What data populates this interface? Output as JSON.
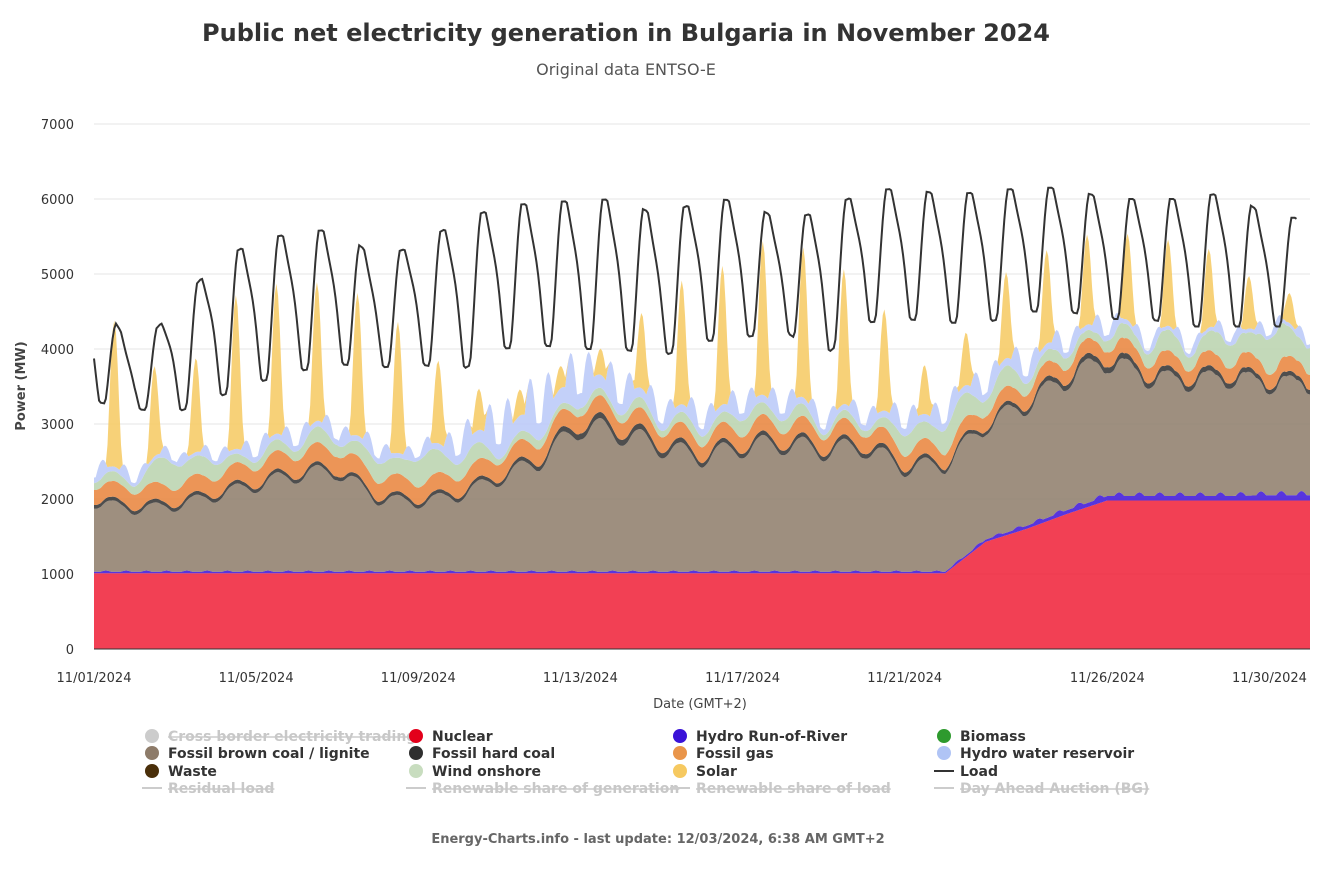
{
  "colors": {
    "nuclear": "#ee0a24",
    "hydro_ror": "#3a12d8",
    "lignite": "#8d7b69",
    "hard_coal": "#2f2f2f",
    "gas": "#e9833a",
    "wind": "#b8d2ad",
    "hydro_res": "#b8c8f8",
    "solar": "#f6c960",
    "load": "#333333",
    "grid": "#e6e6e6"
  },
  "chart_data": {
    "type": "area",
    "title": "Public net electricity generation in Bulgaria in November 2024",
    "subtitle": "Original data ENTSO-E",
    "xlabel": "Date (GMT+2)",
    "ylabel": "Power (MW)",
    "ylim": [
      0,
      7000
    ],
    "y_ticks": [
      "0",
      "1000",
      "2000",
      "3000",
      "4000",
      "5000",
      "6000",
      "7000"
    ],
    "x_ticks": [
      "11/01/2024",
      "11/05/2024",
      "11/09/2024",
      "11/13/2024",
      "11/17/2024",
      "11/21/2024",
      "11/26/2024",
      "11/30/2024"
    ],
    "x_tick_days": [
      1,
      5,
      9,
      13,
      17,
      21,
      26,
      30
    ],
    "grid": true,
    "legend_position": "bottom",
    "days": [
      1,
      2,
      3,
      4,
      5,
      6,
      7,
      8,
      9,
      10,
      11,
      12,
      13,
      14,
      15,
      16,
      17,
      18,
      19,
      20,
      21,
      22,
      23,
      24,
      25,
      26,
      27,
      28,
      29,
      30
    ],
    "series": [
      {
        "name": "Nuclear",
        "key": "nuclear",
        "values": [
          1010,
          1010,
          1010,
          1010,
          1010,
          1010,
          1010,
          1010,
          1010,
          1010,
          1010,
          1010,
          1010,
          1010,
          1010,
          1010,
          1010,
          1010,
          1010,
          1010,
          1010,
          1010,
          1430,
          1600,
          1800,
          1980,
          1980,
          1980,
          1980,
          1980
        ]
      },
      {
        "name": "Hydro Run-of-River",
        "key": "hydro_ror",
        "values": [
          20,
          20,
          20,
          20,
          20,
          20,
          20,
          20,
          20,
          20,
          20,
          20,
          20,
          20,
          20,
          20,
          20,
          20,
          20,
          20,
          20,
          20,
          30,
          40,
          50,
          60,
          60,
          60,
          60,
          70
        ]
      },
      {
        "name": "Fossil brown coal / lignite",
        "key": "lignite",
        "values": [
          1000,
          900,
          950,
          1100,
          1250,
          1400,
          1450,
          1050,
          1000,
          1100,
          1350,
          1600,
          2100,
          2000,
          1800,
          1650,
          1800,
          1850,
          1750,
          1800,
          1500,
          1550,
          1650,
          1750,
          1900,
          1950,
          1700,
          1650,
          1700,
          1600
        ]
      },
      {
        "name": "Fossil hard coal",
        "key": "hard_coal",
        "values": [
          50,
          50,
          50,
          50,
          50,
          50,
          50,
          50,
          50,
          50,
          50,
          60,
          80,
          80,
          70,
          60,
          60,
          60,
          60,
          60,
          60,
          50,
          50,
          60,
          70,
          80,
          70,
          70,
          70,
          60
        ]
      },
      {
        "name": "Fossil gas",
        "key": "gas",
        "values": [
          200,
          220,
          230,
          230,
          240,
          250,
          260,
          240,
          230,
          230,
          240,
          230,
          230,
          220,
          210,
          210,
          220,
          220,
          220,
          220,
          210,
          200,
          200,
          200,
          200,
          200,
          200,
          200,
          200,
          200
        ]
      },
      {
        "name": "Wind onshore",
        "key": "wind",
        "values": [
          100,
          150,
          400,
          200,
          120,
          180,
          200,
          250,
          350,
          300,
          100,
          120,
          100,
          130,
          120,
          150,
          200,
          200,
          100,
          100,
          250,
          350,
          300,
          200,
          150,
          150,
          250,
          250,
          300,
          450
        ]
      },
      {
        "name": "Hydro water reservoir",
        "key": "hydro_res",
        "values": [
          150,
          100,
          100,
          100,
          150,
          150,
          150,
          150,
          100,
          250,
          400,
          450,
          400,
          300,
          200,
          200,
          200,
          200,
          150,
          150,
          200,
          200,
          200,
          200,
          150,
          150,
          100,
          100,
          100,
          100
        ]
      },
      {
        "name": "Solar",
        "key": "solar",
        "values": [
          2000,
          1900,
          500,
          2000,
          2100,
          1900,
          1800,
          2000,
          1500,
          700,
          400,
          300,
          300,
          400,
          1600,
          1700,
          2000,
          2100,
          1900,
          1700,
          1000,
          300,
          1100,
          1200,
          1300,
          1100,
          1200,
          1100,
          1000,
          400
        ]
      },
      {
        "name": "Load",
        "key": "load",
        "day_max": [
          4800,
          3950,
          4550,
          5150,
          5450,
          5550,
          5600,
          5200,
          5400,
          5700,
          5900,
          5950,
          5980,
          6000,
          5750,
          6000,
          5980,
          5700,
          5850,
          6100,
          6150,
          6050,
          6100,
          6150,
          6150,
          6000,
          6000,
          6000,
          6100,
          5750
        ],
        "day_min": [
          3300,
          3200,
          3150,
          3350,
          3550,
          3700,
          3800,
          3750,
          3800,
          3700,
          4000,
          4050,
          4000,
          4000,
          3900,
          4100,
          4150,
          4250,
          3900,
          4350,
          4400,
          4350,
          4350,
          4500,
          4500,
          4400,
          4400,
          4300,
          4300,
          4300
        ]
      }
    ]
  },
  "legend": [
    {
      "label": "Cross border electricity trading",
      "marker": "dot",
      "color": "#cccccc",
      "active": false
    },
    {
      "label": "Nuclear",
      "marker": "dot",
      "color": "#e3001b",
      "active": true
    },
    {
      "label": "Hydro Run-of-River",
      "marker": "dot",
      "color": "#3a12d8",
      "active": true
    },
    {
      "label": "Biomass",
      "marker": "dot",
      "color": "#2e9a2e",
      "active": true
    },
    {
      "label": "Fossil brown coal / lignite",
      "marker": "dot",
      "color": "#8d7b69",
      "active": true
    },
    {
      "label": "Fossil hard coal",
      "marker": "dot",
      "color": "#2f2f2f",
      "active": true
    },
    {
      "label": "Fossil gas",
      "marker": "dot",
      "color": "#e9954a",
      "active": true
    },
    {
      "label": "Hydro water reservoir",
      "marker": "dot",
      "color": "#b0c4f5",
      "active": true
    },
    {
      "label": "Waste",
      "marker": "dot",
      "color": "#4a2f0a",
      "active": true
    },
    {
      "label": "Wind onshore",
      "marker": "dot",
      "color": "#c8ddbf",
      "active": true
    },
    {
      "label": "Solar",
      "marker": "dot",
      "color": "#f6c960",
      "active": true
    },
    {
      "label": "Load",
      "marker": "line",
      "color": "#333333",
      "active": true
    },
    {
      "label": "Residual load",
      "marker": "line",
      "color": "#cccccc",
      "active": false
    },
    {
      "label": "Renewable share of generation",
      "marker": "line",
      "color": "#cccccc",
      "active": false
    },
    {
      "label": "Renewable share of load",
      "marker": "line",
      "color": "#cccccc",
      "active": false
    },
    {
      "label": "Day Ahead Auction (BG)",
      "marker": "line",
      "color": "#cccccc",
      "active": false
    }
  ],
  "footer": "Energy-Charts.info - last update: 12/03/2024, 6:38 AM GMT+2"
}
